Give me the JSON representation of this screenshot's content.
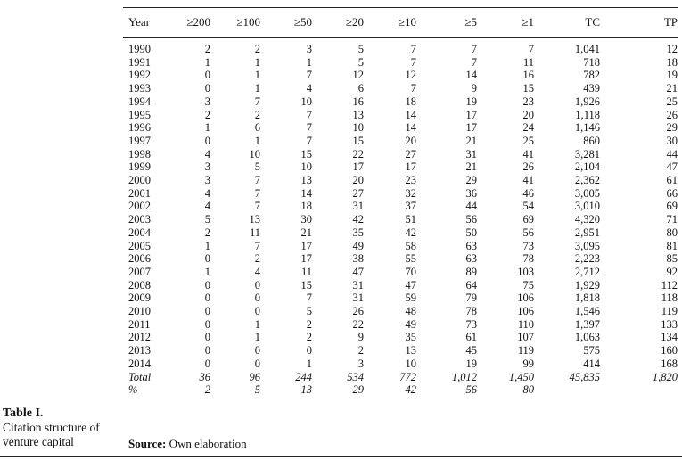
{
  "table": {
    "headers": [
      "Year",
      "≥200",
      "≥100",
      "≥50",
      "≥20",
      "≥10",
      "≥5",
      "≥1",
      "TC",
      "TP"
    ],
    "rows": [
      [
        "1990",
        "2",
        "2",
        "3",
        "5",
        "7",
        "7",
        "7",
        "1,041",
        "12"
      ],
      [
        "1991",
        "1",
        "1",
        "1",
        "5",
        "7",
        "7",
        "11",
        "718",
        "18"
      ],
      [
        "1992",
        "0",
        "1",
        "7",
        "12",
        "12",
        "14",
        "16",
        "782",
        "19"
      ],
      [
        "1993",
        "0",
        "1",
        "4",
        "6",
        "7",
        "9",
        "15",
        "439",
        "21"
      ],
      [
        "1994",
        "3",
        "7",
        "10",
        "16",
        "18",
        "19",
        "23",
        "1,926",
        "25"
      ],
      [
        "1995",
        "2",
        "2",
        "7",
        "13",
        "14",
        "17",
        "20",
        "1,118",
        "26"
      ],
      [
        "1996",
        "1",
        "6",
        "7",
        "10",
        "14",
        "17",
        "24",
        "1,146",
        "29"
      ],
      [
        "1997",
        "0",
        "1",
        "7",
        "15",
        "20",
        "21",
        "25",
        "860",
        "30"
      ],
      [
        "1998",
        "4",
        "10",
        "15",
        "22",
        "27",
        "31",
        "41",
        "3,281",
        "44"
      ],
      [
        "1999",
        "3",
        "5",
        "10",
        "17",
        "17",
        "21",
        "26",
        "2,104",
        "47"
      ],
      [
        "2000",
        "3",
        "7",
        "13",
        "20",
        "23",
        "29",
        "41",
        "2,362",
        "61"
      ],
      [
        "2001",
        "4",
        "7",
        "14",
        "27",
        "32",
        "36",
        "46",
        "3,005",
        "66"
      ],
      [
        "2002",
        "4",
        "7",
        "18",
        "31",
        "37",
        "44",
        "54",
        "3,010",
        "69"
      ],
      [
        "2003",
        "5",
        "13",
        "30",
        "42",
        "51",
        "56",
        "69",
        "4,320",
        "71"
      ],
      [
        "2004",
        "2",
        "11",
        "21",
        "35",
        "42",
        "50",
        "56",
        "2,951",
        "80"
      ],
      [
        "2005",
        "1",
        "7",
        "17",
        "49",
        "58",
        "63",
        "73",
        "3,095",
        "81"
      ],
      [
        "2006",
        "0",
        "2",
        "17",
        "38",
        "55",
        "63",
        "78",
        "2,223",
        "85"
      ],
      [
        "2007",
        "1",
        "4",
        "11",
        "47",
        "70",
        "89",
        "103",
        "2,712",
        "92"
      ],
      [
        "2008",
        "0",
        "0",
        "15",
        "31",
        "47",
        "64",
        "75",
        "1,929",
        "112"
      ],
      [
        "2009",
        "0",
        "0",
        "7",
        "31",
        "59",
        "79",
        "106",
        "1,818",
        "118"
      ],
      [
        "2010",
        "0",
        "0",
        "5",
        "26",
        "48",
        "78",
        "106",
        "1,546",
        "119"
      ],
      [
        "2011",
        "0",
        "1",
        "2",
        "22",
        "49",
        "73",
        "110",
        "1,397",
        "133"
      ],
      [
        "2012",
        "0",
        "1",
        "2",
        "9",
        "35",
        "61",
        "107",
        "1,063",
        "134"
      ],
      [
        "2013",
        "0",
        "0",
        "0",
        "2",
        "13",
        "45",
        "119",
        "575",
        "160"
      ],
      [
        "2014",
        "0",
        "0",
        "1",
        "3",
        "10",
        "19",
        "99",
        "414",
        "168"
      ]
    ],
    "summary_rows": [
      [
        "Total",
        "36",
        "96",
        "244",
        "534",
        "772",
        "1,012",
        "1,450",
        "45,835",
        "1,820"
      ],
      [
        "%",
        "2",
        "5",
        "13",
        "29",
        "42",
        "56",
        "80",
        "",
        ""
      ]
    ]
  },
  "caption": {
    "label": "Table I.",
    "text": "Citation structure of venture capital"
  },
  "source": {
    "label": "Source:",
    "text": "Own elaboration"
  }
}
